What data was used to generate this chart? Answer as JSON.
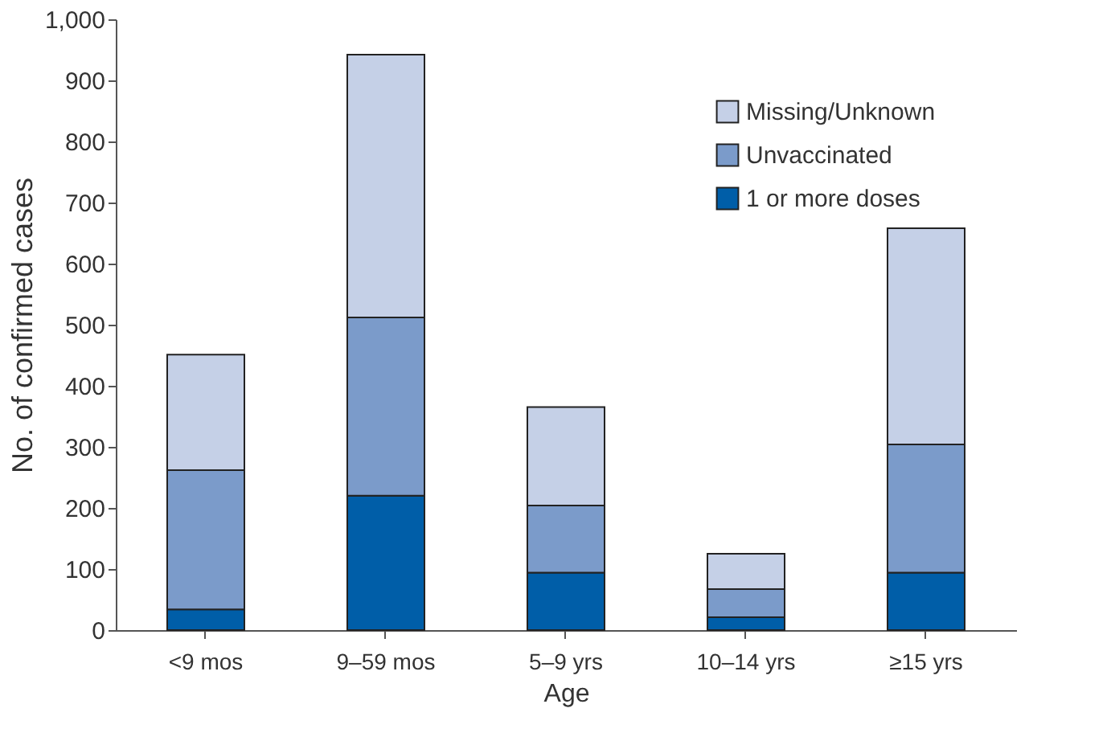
{
  "chart_data": {
    "type": "bar",
    "stacked": true,
    "xlabel": "Age",
    "ylabel": "No. of confirmed cases",
    "categories": [
      "<9 mos",
      "9–59 mos",
      "5–9 yrs",
      "10–14 yrs",
      "≥15 yrs"
    ],
    "series": [
      {
        "name": "1 or more doses",
        "color": "#005ea8",
        "values": [
          34,
          220,
          94,
          21,
          94
        ]
      },
      {
        "name": "Unvaccinated",
        "color": "#7b9bca",
        "values": [
          228,
          292,
          110,
          46,
          210
        ]
      },
      {
        "name": "Missing/Unknown",
        "color": "#c5d0e7",
        "values": [
          189,
          430,
          161,
          58,
          354
        ]
      }
    ],
    "ylim": [
      0,
      1000
    ],
    "yticks": [
      0,
      100,
      200,
      300,
      400,
      500,
      600,
      700,
      800,
      900,
      {
        "value": 1000,
        "label": "1,000"
      }
    ],
    "grid": false,
    "legend": "top right"
  }
}
